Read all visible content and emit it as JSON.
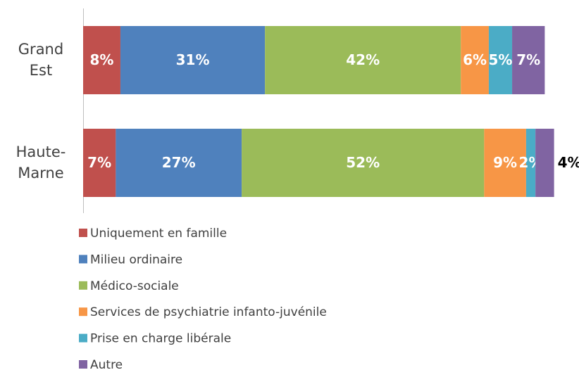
{
  "chart_data": {
    "type": "stacked-bar-horizontal",
    "categories": [
      "Grand Est",
      "Haute-Marne"
    ],
    "xlim": [
      0,
      100
    ],
    "series": [
      {
        "name": "Uniquement en famille",
        "color": "#c0504d",
        "values": [
          8,
          7
        ],
        "value_labels": [
          "8%",
          "7%"
        ]
      },
      {
        "name": "Milieu ordinaire",
        "color": "#4f81bd",
        "values": [
          31,
          27
        ],
        "value_labels": [
          "31%",
          "27%"
        ]
      },
      {
        "name": "Médico-sociale",
        "color": "#9bbb59",
        "values": [
          42,
          52
        ],
        "value_labels": [
          "42%",
          "52%"
        ]
      },
      {
        "name": "Services de psychiatrie infanto-juvénile",
        "color": "#f79646",
        "values": [
          6,
          9
        ],
        "value_labels": [
          "6%",
          "9%"
        ]
      },
      {
        "name": "Prise en charge libérale",
        "color": "#4bacc6",
        "values": [
          5,
          2
        ],
        "value_labels": [
          "5%",
          "2%"
        ]
      },
      {
        "name": "Autre",
        "color": "#8064a2",
        "values": [
          7,
          4
        ],
        "value_labels": [
          "7%",
          "4%"
        ]
      }
    ]
  }
}
